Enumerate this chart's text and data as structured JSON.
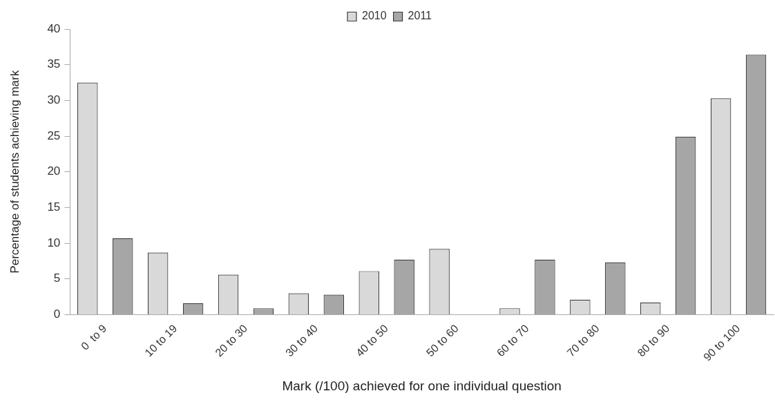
{
  "chart_data": {
    "type": "bar",
    "xlabel": "Mark (/100) achieved for one individual question",
    "ylabel": "Percentage of students achieving mark",
    "categories": [
      "0  to 9",
      "10 to 19",
      "20 to 30",
      "30 to 40",
      "40 to 50",
      "50 to 60",
      "60 to 70",
      "70 to 80",
      "80 to 90",
      "90 to 100"
    ],
    "series": [
      {
        "name": "2010",
        "color": "#d9d9d9",
        "values": [
          32.5,
          8.7,
          5.6,
          3.0,
          6.1,
          9.2,
          0.9,
          2.1,
          1.7,
          30.3
        ]
      },
      {
        "name": "2011",
        "color": "#a6a6a6",
        "values": [
          10.7,
          1.6,
          0.9,
          2.8,
          7.7,
          null,
          7.7,
          7.3,
          24.9,
          36.4
        ]
      }
    ],
    "ylim": [
      0,
      40
    ],
    "yticks": [
      0,
      5,
      10,
      15,
      20,
      25,
      30,
      35,
      40
    ],
    "grid": false,
    "legend": "top"
  }
}
